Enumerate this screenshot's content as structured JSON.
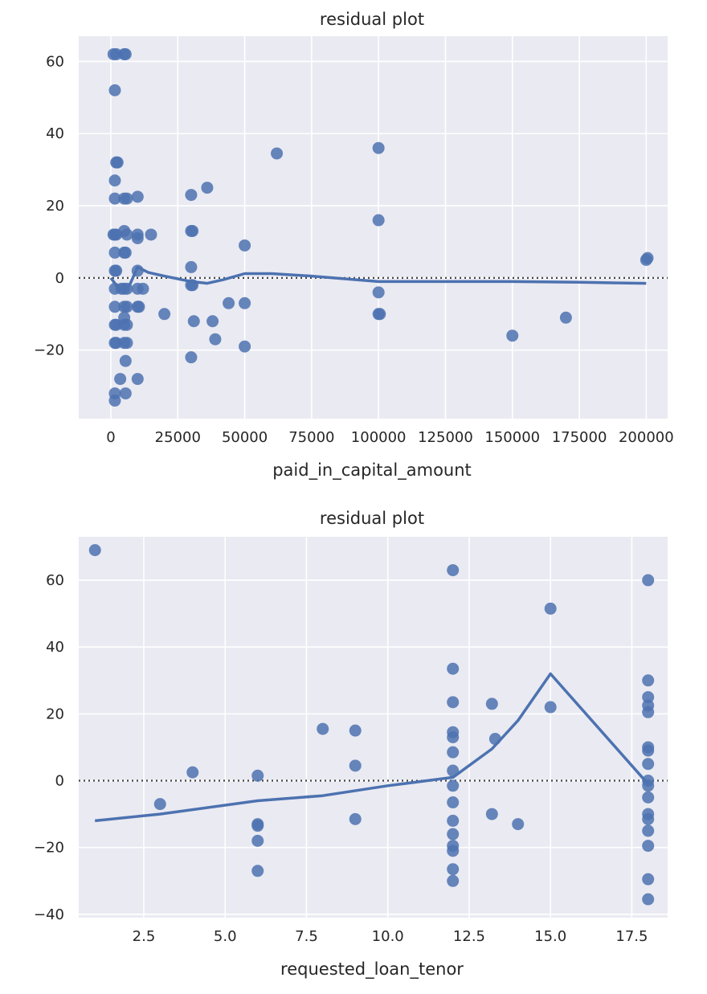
{
  "chart_data": [
    {
      "type": "scatter",
      "title": "residual plot",
      "xlabel": "paid_in_capital_amount",
      "ylabel": "",
      "xlim": [
        -12000,
        208000
      ],
      "ylim": [
        -39,
        67
      ],
      "xticks": [
        0,
        25000,
        50000,
        75000,
        100000,
        125000,
        150000,
        175000,
        200000
      ],
      "yticks": [
        -20,
        0,
        20,
        40,
        60
      ],
      "grid": true,
      "reference_line": 0,
      "points": [
        [
          1000,
          62
        ],
        [
          2000,
          62
        ],
        [
          5000,
          62
        ],
        [
          5500,
          62
        ],
        [
          1500,
          52
        ],
        [
          2000,
          32
        ],
        [
          2500,
          32
        ],
        [
          1500,
          27
        ],
        [
          1500,
          22
        ],
        [
          5000,
          22
        ],
        [
          6000,
          22
        ],
        [
          10000,
          22.5
        ],
        [
          1000,
          12
        ],
        [
          1500,
          12
        ],
        [
          2000,
          12
        ],
        [
          5000,
          13
        ],
        [
          6000,
          12
        ],
        [
          10000,
          12
        ],
        [
          10000,
          11
        ],
        [
          15000,
          12
        ],
        [
          1500,
          7
        ],
        [
          5000,
          7
        ],
        [
          5500,
          7
        ],
        [
          1500,
          2
        ],
        [
          2000,
          2
        ],
        [
          10000,
          2
        ],
        [
          1500,
          -3
        ],
        [
          4000,
          -3
        ],
        [
          5000,
          -3
        ],
        [
          6000,
          -3
        ],
        [
          10000,
          -3
        ],
        [
          12000,
          -3
        ],
        [
          1500,
          -8
        ],
        [
          5000,
          -8
        ],
        [
          6000,
          -8
        ],
        [
          10000,
          -8
        ],
        [
          10500,
          -8
        ],
        [
          5000,
          -11
        ],
        [
          1500,
          -13
        ],
        [
          2000,
          -13
        ],
        [
          5000,
          -13
        ],
        [
          6000,
          -13
        ],
        [
          1500,
          -18
        ],
        [
          2000,
          -18
        ],
        [
          5000,
          -18
        ],
        [
          6000,
          -18
        ],
        [
          5500,
          -23
        ],
        [
          3500,
          -28
        ],
        [
          10000,
          -28
        ],
        [
          1500,
          -32
        ],
        [
          5500,
          -32
        ],
        [
          1500,
          -34
        ],
        [
          20000,
          -10
        ],
        [
          30000,
          23
        ],
        [
          30000,
          13
        ],
        [
          30500,
          13
        ],
        [
          30000,
          3
        ],
        [
          30000,
          -2
        ],
        [
          30500,
          -2
        ],
        [
          31000,
          -12
        ],
        [
          30000,
          -22
        ],
        [
          36000,
          25
        ],
        [
          38000,
          -12
        ],
        [
          39000,
          -17
        ],
        [
          44000,
          -7
        ],
        [
          50000,
          9
        ],
        [
          50000,
          -7
        ],
        [
          50000,
          -19
        ],
        [
          62000,
          34.5
        ],
        [
          100000,
          36
        ],
        [
          100000,
          16
        ],
        [
          100000,
          -4
        ],
        [
          100000,
          -10
        ],
        [
          100500,
          -10
        ],
        [
          150000,
          -16
        ],
        [
          170000,
          -11
        ],
        [
          200000,
          5
        ],
        [
          200500,
          5.5
        ]
      ],
      "fit_line": [
        [
          0,
          0
        ],
        [
          3000,
          -3
        ],
        [
          5000,
          -3.5
        ],
        [
          7000,
          -2
        ],
        [
          10000,
          3
        ],
        [
          14000,
          1.5
        ],
        [
          20000,
          0.5
        ],
        [
          30000,
          -1
        ],
        [
          36000,
          -1.5
        ],
        [
          42000,
          -0.5
        ],
        [
          50000,
          1.2
        ],
        [
          60000,
          1.2
        ],
        [
          75000,
          0.5
        ],
        [
          100000,
          -1
        ],
        [
          125000,
          -1
        ],
        [
          150000,
          -1
        ],
        [
          175000,
          -1.2
        ],
        [
          200000,
          -1.5
        ]
      ]
    },
    {
      "type": "scatter",
      "title": "residual plot",
      "xlabel": "requested_loan_tenor",
      "ylabel": "",
      "xlim": [
        0.5,
        18.6
      ],
      "ylim": [
        -41,
        73
      ],
      "xticks": [
        2.5,
        5.0,
        7.5,
        10.0,
        12.5,
        15.0,
        17.5
      ],
      "xtick_labels": [
        "2.5",
        "5.0",
        "7.5",
        "10.0",
        "12.5",
        "15.0",
        "17.5"
      ],
      "yticks": [
        -40,
        -20,
        0,
        20,
        40,
        60
      ],
      "grid": true,
      "reference_line": 0,
      "points": [
        [
          1,
          69
        ],
        [
          3,
          -7
        ],
        [
          4,
          2.5
        ],
        [
          6,
          1.5
        ],
        [
          6,
          -13
        ],
        [
          6,
          -13.5
        ],
        [
          6,
          -18
        ],
        [
          6,
          -27
        ],
        [
          8,
          15.5
        ],
        [
          9,
          15
        ],
        [
          9,
          4.5
        ],
        [
          9,
          -11.5
        ],
        [
          12,
          63
        ],
        [
          12,
          33.5
        ],
        [
          12,
          23.5
        ],
        [
          12,
          14.5
        ],
        [
          12,
          13
        ],
        [
          12,
          8.5
        ],
        [
          12,
          3
        ],
        [
          12,
          -1.5
        ],
        [
          12,
          -6.5
        ],
        [
          12,
          -12
        ],
        [
          12,
          -16
        ],
        [
          12,
          -19.5
        ],
        [
          12,
          -21
        ],
        [
          12,
          -26.5
        ],
        [
          12,
          -30
        ],
        [
          13.2,
          23
        ],
        [
          13.3,
          12.5
        ],
        [
          13.2,
          -10
        ],
        [
          14,
          -13
        ],
        [
          15,
          51.5
        ],
        [
          15,
          22
        ],
        [
          18,
          60
        ],
        [
          18,
          30
        ],
        [
          18,
          25
        ],
        [
          18,
          22.5
        ],
        [
          18,
          20.5
        ],
        [
          18,
          10
        ],
        [
          18,
          9
        ],
        [
          18,
          5
        ],
        [
          18,
          0
        ],
        [
          18,
          -1.5
        ],
        [
          18,
          -5
        ],
        [
          18,
          -10
        ],
        [
          18,
          -11.5
        ],
        [
          18,
          -15
        ],
        [
          18,
          -19.5
        ],
        [
          18,
          -29.5
        ],
        [
          18,
          -35.5
        ]
      ],
      "fit_line": [
        [
          1,
          -12
        ],
        [
          3,
          -10
        ],
        [
          6,
          -6
        ],
        [
          8,
          -4.5
        ],
        [
          10,
          -1.5
        ],
        [
          12,
          1
        ],
        [
          13.2,
          9.5
        ],
        [
          14,
          18
        ],
        [
          15,
          32
        ],
        [
          18,
          -1
        ]
      ]
    }
  ]
}
